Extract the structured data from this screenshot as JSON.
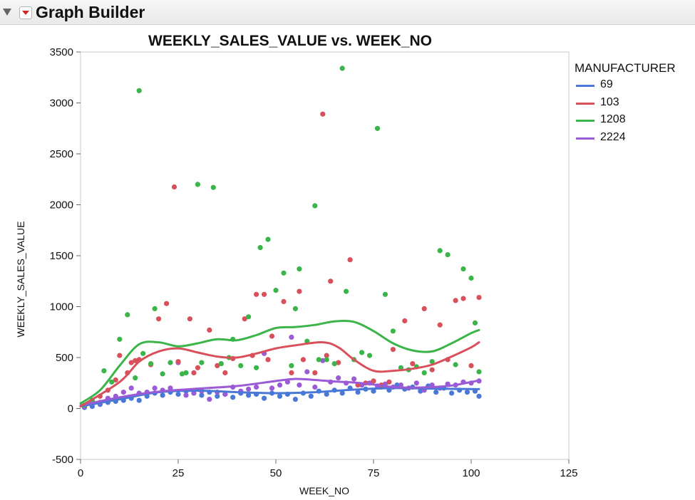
{
  "app": {
    "title": "Graph Builder"
  },
  "chart_data": {
    "type": "scatter",
    "title": "WEEKLY_SALES_VALUE vs. WEEK_NO",
    "xlabel": "WEEK_NO",
    "ylabel": "WEEKLY_SALES_VALUE",
    "xlim": [
      0,
      125
    ],
    "ylim": [
      -500,
      3500
    ],
    "xticks": [
      "0",
      "25",
      "50",
      "75",
      "100",
      "125"
    ],
    "yticks": [
      "-500",
      "0",
      "500",
      "1000",
      "1500",
      "2000",
      "2500",
      "3000",
      "3500"
    ],
    "grid": false,
    "legend": {
      "title": "MANUFACTURER",
      "position": "right"
    },
    "overlay": "smoother line per series",
    "series": [
      {
        "name": "69",
        "color": "#4a78d6",
        "points": [
          [
            1,
            10
          ],
          [
            3,
            20
          ],
          [
            5,
            40
          ],
          [
            7,
            60
          ],
          [
            9,
            70
          ],
          [
            11,
            80
          ],
          [
            13,
            100
          ],
          [
            15,
            80
          ],
          [
            17,
            120
          ],
          [
            19,
            150
          ],
          [
            21,
            130
          ],
          [
            23,
            160
          ],
          [
            25,
            140
          ],
          [
            27,
            170
          ],
          [
            29,
            150
          ],
          [
            31,
            130
          ],
          [
            33,
            160
          ],
          [
            35,
            120
          ],
          [
            37,
            140
          ],
          [
            39,
            110
          ],
          [
            41,
            150
          ],
          [
            43,
            130
          ],
          [
            45,
            140
          ],
          [
            47,
            100
          ],
          [
            49,
            150
          ],
          [
            51,
            120
          ],
          [
            53,
            140
          ],
          [
            55,
            90
          ],
          [
            57,
            150
          ],
          [
            59,
            120
          ],
          [
            61,
            170
          ],
          [
            63,
            140
          ],
          [
            65,
            180
          ],
          [
            67,
            150
          ],
          [
            69,
            200
          ],
          [
            71,
            160
          ],
          [
            73,
            190
          ],
          [
            75,
            170
          ],
          [
            77,
            210
          ],
          [
            79,
            180
          ],
          [
            81,
            230
          ],
          [
            83,
            190
          ],
          [
            85,
            210
          ],
          [
            87,
            170
          ],
          [
            89,
            220
          ],
          [
            91,
            160
          ],
          [
            93,
            200
          ],
          [
            95,
            150
          ],
          [
            97,
            180
          ],
          [
            99,
            160
          ],
          [
            101,
            170
          ],
          [
            102,
            120
          ]
        ],
        "smooth": [
          [
            0,
            20
          ],
          [
            10,
            90
          ],
          [
            20,
            160
          ],
          [
            30,
            175
          ],
          [
            40,
            160
          ],
          [
            50,
            150
          ],
          [
            60,
            160
          ],
          [
            70,
            185
          ],
          [
            80,
            200
          ],
          [
            90,
            195
          ],
          [
            100,
            190
          ],
          [
            102,
            190
          ]
        ]
      },
      {
        "name": "103",
        "color": "#d8505c",
        "points": [
          [
            1,
            30
          ],
          [
            3,
            70
          ],
          [
            5,
            120
          ],
          [
            7,
            180
          ],
          [
            9,
            280
          ],
          [
            10,
            520
          ],
          [
            12,
            350
          ],
          [
            13,
            450
          ],
          [
            14,
            470
          ],
          [
            15,
            480
          ],
          [
            18,
            430
          ],
          [
            20,
            880
          ],
          [
            22,
            1030
          ],
          [
            24,
            2175
          ],
          [
            25,
            460
          ],
          [
            28,
            880
          ],
          [
            29,
            350
          ],
          [
            30,
            400
          ],
          [
            33,
            770
          ],
          [
            35,
            420
          ],
          [
            37,
            350
          ],
          [
            39,
            490
          ],
          [
            42,
            880
          ],
          [
            44,
            520
          ],
          [
            45,
            1120
          ],
          [
            47,
            1120
          ],
          [
            48,
            480
          ],
          [
            49,
            710
          ],
          [
            52,
            1050
          ],
          [
            54,
            350
          ],
          [
            56,
            1150
          ],
          [
            57,
            480
          ],
          [
            60,
            350
          ],
          [
            62,
            2890
          ],
          [
            63,
            520
          ],
          [
            64,
            1250
          ],
          [
            66,
            450
          ],
          [
            69,
            1460
          ],
          [
            71,
            230
          ],
          [
            73,
            250
          ],
          [
            75,
            270
          ],
          [
            77,
            230
          ],
          [
            79,
            260
          ],
          [
            80,
            580
          ],
          [
            83,
            860
          ],
          [
            85,
            440
          ],
          [
            88,
            980
          ],
          [
            90,
            380
          ],
          [
            92,
            820
          ],
          [
            94,
            480
          ],
          [
            96,
            1060
          ],
          [
            98,
            1080
          ],
          [
            100,
            420
          ],
          [
            102,
            1090
          ]
        ],
        "smooth": [
          [
            0,
            20
          ],
          [
            10,
            260
          ],
          [
            15,
            460
          ],
          [
            20,
            560
          ],
          [
            25,
            590
          ],
          [
            30,
            550
          ],
          [
            35,
            510
          ],
          [
            40,
            500
          ],
          [
            45,
            540
          ],
          [
            50,
            590
          ],
          [
            55,
            620
          ],
          [
            62,
            650
          ],
          [
            66,
            600
          ],
          [
            70,
            480
          ],
          [
            75,
            370
          ],
          [
            80,
            370
          ],
          [
            85,
            390
          ],
          [
            90,
            430
          ],
          [
            95,
            510
          ],
          [
            100,
            600
          ],
          [
            102,
            650
          ]
        ]
      },
      {
        "name": "1208",
        "color": "#3bb54a",
        "points": [
          [
            1,
            30
          ],
          [
            3,
            80
          ],
          [
            6,
            370
          ],
          [
            8,
            260
          ],
          [
            10,
            680
          ],
          [
            12,
            920
          ],
          [
            14,
            300
          ],
          [
            15,
            3120
          ],
          [
            16,
            540
          ],
          [
            18,
            440
          ],
          [
            19,
            980
          ],
          [
            21,
            340
          ],
          [
            23,
            450
          ],
          [
            26,
            340
          ],
          [
            27,
            350
          ],
          [
            30,
            2200
          ],
          [
            31,
            450
          ],
          [
            34,
            2170
          ],
          [
            36,
            440
          ],
          [
            38,
            500
          ],
          [
            39,
            680
          ],
          [
            41,
            420
          ],
          [
            43,
            900
          ],
          [
            45,
            400
          ],
          [
            46,
            1580
          ],
          [
            48,
            1660
          ],
          [
            50,
            1160
          ],
          [
            52,
            1330
          ],
          [
            54,
            420
          ],
          [
            55,
            980
          ],
          [
            56,
            1370
          ],
          [
            58,
            660
          ],
          [
            60,
            1990
          ],
          [
            61,
            480
          ],
          [
            63,
            480
          ],
          [
            65,
            440
          ],
          [
            67,
            3340
          ],
          [
            68,
            1150
          ],
          [
            70,
            480
          ],
          [
            72,
            550
          ],
          [
            74,
            520
          ],
          [
            76,
            2750
          ],
          [
            78,
            1120
          ],
          [
            80,
            760
          ],
          [
            82,
            400
          ],
          [
            84,
            380
          ],
          [
            86,
            410
          ],
          [
            88,
            350
          ],
          [
            90,
            460
          ],
          [
            92,
            1550
          ],
          [
            94,
            1510
          ],
          [
            96,
            430
          ],
          [
            98,
            1370
          ],
          [
            100,
            1280
          ],
          [
            101,
            840
          ],
          [
            102,
            360
          ]
        ],
        "smooth": [
          [
            0,
            50
          ],
          [
            5,
            180
          ],
          [
            10,
            420
          ],
          [
            15,
            630
          ],
          [
            20,
            650
          ],
          [
            25,
            610
          ],
          [
            30,
            640
          ],
          [
            35,
            680
          ],
          [
            40,
            670
          ],
          [
            45,
            720
          ],
          [
            50,
            790
          ],
          [
            55,
            800
          ],
          [
            60,
            820
          ],
          [
            65,
            855
          ],
          [
            70,
            850
          ],
          [
            75,
            760
          ],
          [
            80,
            640
          ],
          [
            85,
            570
          ],
          [
            90,
            560
          ],
          [
            95,
            640
          ],
          [
            100,
            740
          ],
          [
            102,
            770
          ]
        ]
      },
      {
        "name": "2224",
        "color": "#9b5bd6",
        "points": [
          [
            1,
            20
          ],
          [
            3,
            50
          ],
          [
            5,
            60
          ],
          [
            7,
            100
          ],
          [
            9,
            120
          ],
          [
            11,
            160
          ],
          [
            13,
            200
          ],
          [
            15,
            150
          ],
          [
            17,
            160
          ],
          [
            19,
            200
          ],
          [
            21,
            180
          ],
          [
            23,
            200
          ],
          [
            25,
            450
          ],
          [
            27,
            130
          ],
          [
            29,
            150
          ],
          [
            31,
            170
          ],
          [
            33,
            90
          ],
          [
            35,
            160
          ],
          [
            37,
            140
          ],
          [
            39,
            210
          ],
          [
            41,
            170
          ],
          [
            43,
            190
          ],
          [
            45,
            210
          ],
          [
            47,
            540
          ],
          [
            49,
            200
          ],
          [
            51,
            230
          ],
          [
            53,
            260
          ],
          [
            54,
            700
          ],
          [
            56,
            230
          ],
          [
            58,
            360
          ],
          [
            60,
            210
          ],
          [
            62,
            470
          ],
          [
            64,
            260
          ],
          [
            66,
            300
          ],
          [
            68,
            250
          ],
          [
            70,
            290
          ],
          [
            72,
            230
          ],
          [
            74,
            250
          ],
          [
            76,
            220
          ],
          [
            78,
            240
          ],
          [
            80,
            210
          ],
          [
            82,
            230
          ],
          [
            84,
            200
          ],
          [
            86,
            250
          ],
          [
            88,
            180
          ],
          [
            90,
            230
          ],
          [
            92,
            200
          ],
          [
            94,
            240
          ],
          [
            96,
            230
          ],
          [
            98,
            260
          ],
          [
            100,
            250
          ],
          [
            102,
            270
          ]
        ],
        "smooth": [
          [
            0,
            30
          ],
          [
            10,
            110
          ],
          [
            20,
            165
          ],
          [
            30,
            195
          ],
          [
            40,
            220
          ],
          [
            50,
            270
          ],
          [
            55,
            290
          ],
          [
            60,
            280
          ],
          [
            65,
            265
          ],
          [
            70,
            255
          ],
          [
            75,
            235
          ],
          [
            80,
            210
          ],
          [
            85,
            205
          ],
          [
            90,
            210
          ],
          [
            95,
            225
          ],
          [
            100,
            260
          ],
          [
            102,
            275
          ]
        ]
      }
    ]
  }
}
